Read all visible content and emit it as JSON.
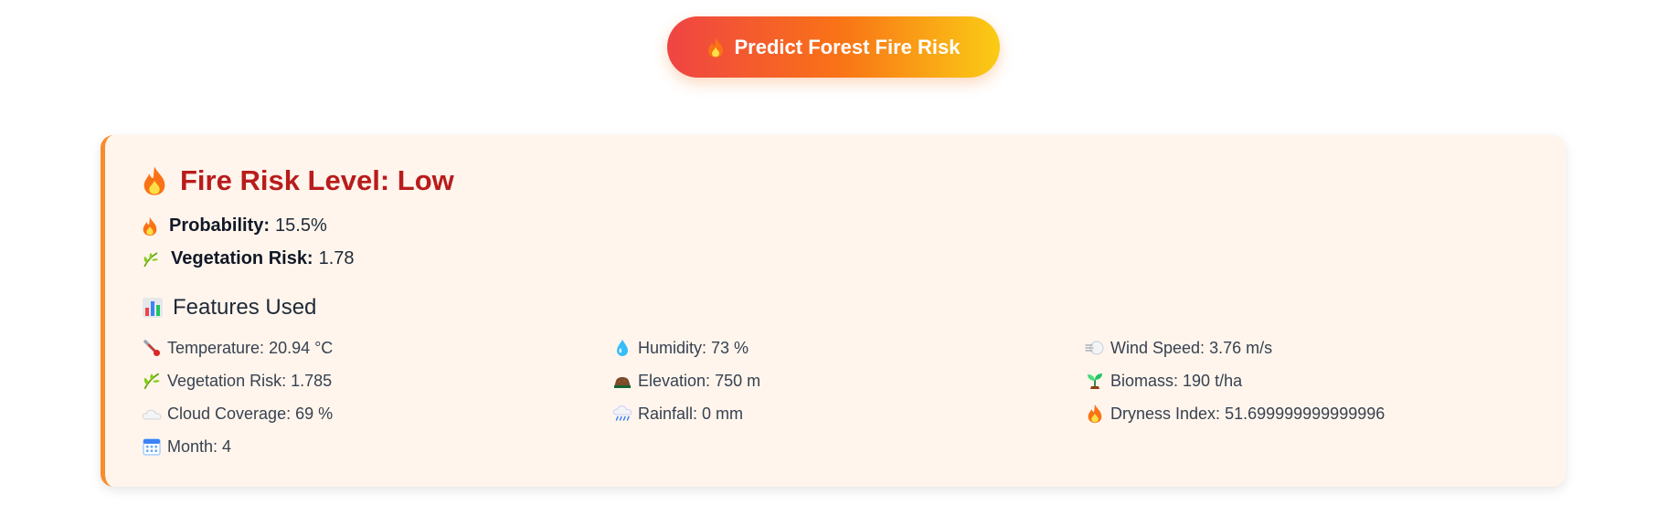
{
  "predict_button": {
    "label": "Predict Forest Fire Risk",
    "icon": "flame-icon"
  },
  "result": {
    "title": "Fire Risk Level: Low",
    "probability": {
      "label": "Probability:",
      "value": "15.5%"
    },
    "vegetation_risk": {
      "label": "Vegetation Risk:",
      "value": "1.78"
    },
    "features_title": "Features Used",
    "features": [
      {
        "icon": "thermometer-icon",
        "name": "Temperature:",
        "value": "20.94 °C"
      },
      {
        "icon": "droplet-icon",
        "name": "Humidity:",
        "value": "73 %"
      },
      {
        "icon": "wind-icon",
        "name": "Wind Speed:",
        "value": "3.76 m/s"
      },
      {
        "icon": "leaf-icon",
        "name": "Vegetation Risk:",
        "value": "1.785"
      },
      {
        "icon": "soil-icon",
        "name": "Elevation:",
        "value": "750 m"
      },
      {
        "icon": "seedling-icon",
        "name": "Biomass:",
        "value": "190 t/ha"
      },
      {
        "icon": "cloud-icon",
        "name": "Cloud Coverage:",
        "value": "69 %"
      },
      {
        "icon": "rain-cloud-icon",
        "name": "Rainfall:",
        "value": "0 mm"
      },
      {
        "icon": "flame-icon",
        "name": "Dryness Index:",
        "value": "51.699999999999996"
      },
      {
        "icon": "calendar-icon",
        "name": "Month:",
        "value": "4"
      }
    ]
  },
  "colors": {
    "title_red": "#b91c1c",
    "card_bg": "#fff5ec",
    "card_border": "#f98c2c",
    "button_gradient": [
      "#ef4444",
      "#f97316",
      "#facc15"
    ]
  }
}
